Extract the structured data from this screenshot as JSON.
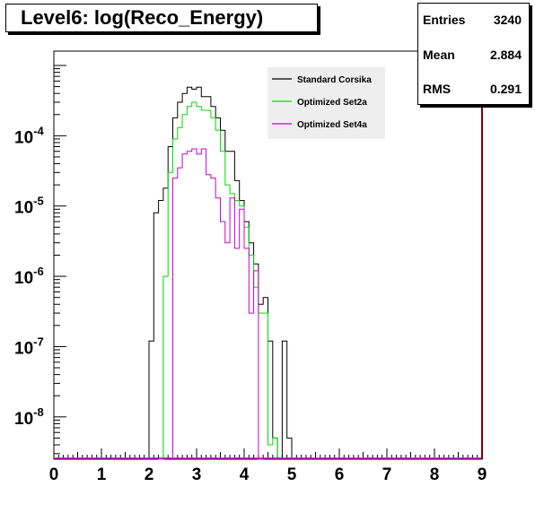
{
  "title": "Level6:  log(Reco_Energy)",
  "stats": [
    {
      "label": "Entries",
      "value": "3240"
    },
    {
      "label": "Mean",
      "value": "2.884"
    },
    {
      "label": "RMS",
      "value": "0.291"
    }
  ],
  "colors": {
    "standard": "#000000",
    "set2a": "#00dd00",
    "set4a": "#cc00cc",
    "frame": "#800000"
  },
  "chart_data": {
    "type": "line",
    "title": "Level6:  log(Reco_Energy)",
    "xlabel": "",
    "ylabel": "",
    "xlim": [
      0,
      9
    ],
    "ylim": [
      2.5e-09,
      0.0016
    ],
    "yscale": "log",
    "grid": false,
    "legend_position": "top-right",
    "x_ticks": [
      "0",
      "1",
      "2",
      "3",
      "4",
      "5",
      "6",
      "7",
      "8",
      "9"
    ],
    "y_ticks": [
      {
        "base": "10",
        "exp": "-4",
        "value": 0.0001
      },
      {
        "base": "10",
        "exp": "-5",
        "value": 1e-05
      },
      {
        "base": "10",
        "exp": "-6",
        "value": 1e-06
      },
      {
        "base": "10",
        "exp": "-7",
        "value": 1e-07
      },
      {
        "base": "10",
        "exp": "-8",
        "value": 1e-08
      }
    ],
    "bin_width": 0.1,
    "series": [
      {
        "name": "Standard Corsika",
        "color": "#000000",
        "bins": [
          [
            2.0,
            1.2e-07
          ],
          [
            2.1,
            8e-06
          ],
          [
            2.2,
            1.2e-05
          ],
          [
            2.3,
            1.8e-05
          ],
          [
            2.4,
            7e-05
          ],
          [
            2.5,
            0.00018
          ],
          [
            2.6,
            0.0003
          ],
          [
            2.7,
            0.0004
          ],
          [
            2.8,
            0.00049
          ],
          [
            2.9,
            0.00046
          ],
          [
            3.0,
            0.00049
          ],
          [
            3.1,
            0.00036
          ],
          [
            3.2,
            0.00036
          ],
          [
            3.3,
            0.00026
          ],
          [
            3.4,
            0.00018
          ],
          [
            3.5,
            0.00012
          ],
          [
            3.6,
            6e-05
          ],
          [
            3.7,
            6e-05
          ],
          [
            3.8,
            2.3e-05
          ],
          [
            3.9,
            1.2e-05
          ],
          [
            4.0,
            6e-06
          ],
          [
            4.1,
            3e-06
          ],
          [
            4.2,
            1.5e-06
          ],
          [
            4.3,
            4e-07
          ],
          [
            4.4,
            5e-07
          ],
          [
            4.5,
            1.2e-07
          ],
          [
            4.6,
            5e-09
          ],
          [
            4.7,
            2e-09
          ],
          [
            4.8,
            1.2e-07
          ],
          [
            4.9,
            5e-09
          ]
        ]
      },
      {
        "name": "Optimized Set2a",
        "color": "#00dd00",
        "bins": [
          [
            2.2,
            2.4e-09
          ],
          [
            2.3,
            1e-06
          ],
          [
            2.4,
            3e-05
          ],
          [
            2.5,
            9e-05
          ],
          [
            2.6,
            0.00013
          ],
          [
            2.7,
            0.0002
          ],
          [
            2.8,
            0.00026
          ],
          [
            2.9,
            0.0003
          ],
          [
            3.0,
            0.00026
          ],
          [
            3.1,
            0.00023
          ],
          [
            3.2,
            0.00023
          ],
          [
            3.3,
            0.00018
          ],
          [
            3.4,
            0.00012
          ],
          [
            3.5,
            6e-05
          ],
          [
            3.6,
            2e-05
          ],
          [
            3.7,
            1.5e-05
          ],
          [
            3.8,
            1.2e-05
          ],
          [
            3.9,
            1e-05
          ],
          [
            4.0,
            5e-06
          ],
          [
            4.1,
            2e-06
          ],
          [
            4.2,
            7e-07
          ],
          [
            4.3,
            3e-07
          ],
          [
            4.4,
            3e-07
          ],
          [
            4.5,
            4e-09
          ],
          [
            4.6,
            5e-09
          ]
        ]
      },
      {
        "name": "Optimized Set4a",
        "color": "#cc00cc",
        "bins": [
          [
            2.5,
            2.5e-05
          ],
          [
            2.6,
            3.5e-05
          ],
          [
            2.7,
            5.5e-05
          ],
          [
            2.8,
            6e-05
          ],
          [
            2.9,
            6.5e-05
          ],
          [
            3.0,
            5.5e-05
          ],
          [
            3.1,
            6.5e-05
          ],
          [
            3.2,
            2.8e-05
          ],
          [
            3.3,
            2.5e-05
          ],
          [
            3.4,
            1.3e-05
          ],
          [
            3.5,
            6e-06
          ],
          [
            3.6,
            3e-06
          ],
          [
            3.7,
            1.3e-05
          ],
          [
            3.8,
            2.5e-06
          ],
          [
            3.9,
            9e-06
          ],
          [
            4.0,
            2.5e-06
          ],
          [
            4.1,
            3e-07
          ],
          [
            4.2,
            1.2e-06
          ],
          [
            4.3,
            2.4e-09
          ]
        ]
      }
    ]
  }
}
